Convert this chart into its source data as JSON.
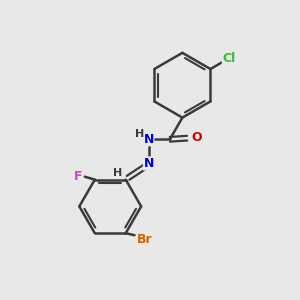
{
  "background_color": "#e8e8e8",
  "bond_color": "#3a3a3a",
  "atom_colors": {
    "Cl": "#3cb83c",
    "O": "#cc0000",
    "N": "#0000cc",
    "H": "#3a3a3a",
    "Br": "#cc6600",
    "F": "#cc44cc"
  },
  "figsize": [
    3.0,
    3.0
  ],
  "dpi": 100
}
